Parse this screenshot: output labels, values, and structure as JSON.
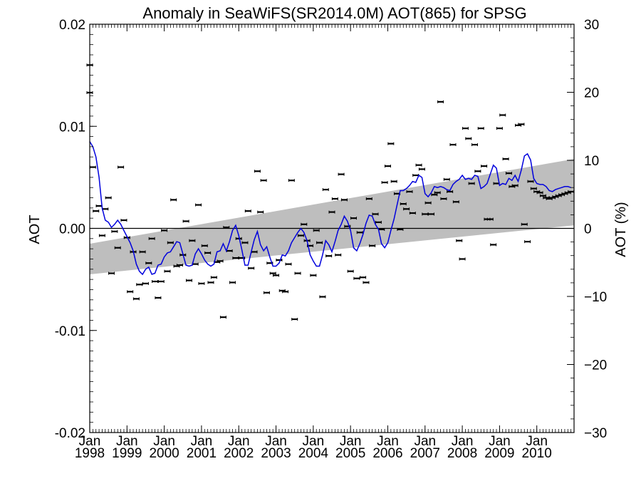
{
  "chart_data": {
    "type": "line",
    "title": "Anomaly in SeaWiFS(SR2014.0M) AOT(865) for SPSG",
    "ylabel": "AOT",
    "y2label": "AOT (%)",
    "ylim": [
      -0.02,
      0.02
    ],
    "y2lim": [
      -30,
      30
    ],
    "xlim": [
      "1998-01",
      "2011-01"
    ],
    "yticks": [
      "0.02",
      "0.01",
      "0.00",
      "-0.01",
      "-0.02"
    ],
    "y2ticks": [
      "30",
      "20",
      "10",
      "0",
      "−10",
      "−20",
      "−30"
    ],
    "xticks": [
      {
        "month": "Jan",
        "year": "1998"
      },
      {
        "month": "Jan",
        "year": "1999"
      },
      {
        "month": "Jan",
        "year": "2000"
      },
      {
        "month": "Jan",
        "year": "2001"
      },
      {
        "month": "Jan",
        "year": "2002"
      },
      {
        "month": "Jan",
        "year": "2003"
      },
      {
        "month": "Jan",
        "year": "2004"
      },
      {
        "month": "Jan",
        "year": "2005"
      },
      {
        "month": "Jan",
        "year": "2006"
      },
      {
        "month": "Jan",
        "year": "2007"
      },
      {
        "month": "Jan",
        "year": "2008"
      },
      {
        "month": "Jan",
        "year": "2009"
      },
      {
        "month": "Jan",
        "year": "2010"
      }
    ],
    "trend_band": {
      "start": {
        "x": "1998-01",
        "upper": -0.0015,
        "lower": -0.0045
      },
      "end": {
        "x": "2011-01",
        "upper": 0.0068,
        "lower": 0.0003
      },
      "color": "#bebebe"
    },
    "series": [
      {
        "style": "errorbar_points",
        "color": "#000000",
        "x": [
          "1998-01",
          "1998-01",
          "1998-02",
          "1998-03",
          "1998-04",
          "1998-05",
          "1998-06",
          "1998-07",
          "1998-08",
          "1998-09",
          "1998-10",
          "1998-11",
          "1998-12",
          "1999-01",
          "1999-02",
          "1999-03",
          "1999-04",
          "1999-05",
          "1999-06",
          "1999-07",
          "1999-08",
          "1999-09",
          "1999-10",
          "1999-11",
          "1999-12",
          "2000-01",
          "2000-02",
          "2000-03",
          "2000-04",
          "2000-05",
          "2000-06",
          "2000-07",
          "2000-08",
          "2000-09",
          "2000-10",
          "2000-11",
          "2000-12",
          "2001-01",
          "2001-02",
          "2001-03",
          "2001-04",
          "2001-05",
          "2001-06",
          "2001-07",
          "2001-08",
          "2001-09",
          "2001-10",
          "2001-11",
          "2001-12",
          "2002-01",
          "2002-02",
          "2002-03",
          "2002-04",
          "2002-05",
          "2002-06",
          "2002-07",
          "2002-08",
          "2002-09",
          "2002-10",
          "2002-11",
          "2002-12",
          "2003-01",
          "2003-02",
          "2003-03",
          "2003-04",
          "2003-05",
          "2003-06",
          "2003-07",
          "2003-08",
          "2003-09",
          "2003-10",
          "2003-11",
          "2003-12",
          "2004-01",
          "2004-02",
          "2004-03",
          "2004-04",
          "2004-05",
          "2004-06",
          "2004-07",
          "2004-08",
          "2004-09",
          "2004-10",
          "2004-11",
          "2004-12",
          "2005-01",
          "2005-02",
          "2005-03",
          "2005-04",
          "2005-05",
          "2005-06",
          "2005-07",
          "2005-08",
          "2005-09",
          "2005-10",
          "2005-11",
          "2005-12",
          "2006-01",
          "2006-02",
          "2006-03",
          "2006-04",
          "2006-05",
          "2006-06",
          "2006-07",
          "2006-08",
          "2006-09",
          "2006-10",
          "2006-11",
          "2006-12",
          "2007-01",
          "2007-02",
          "2007-03",
          "2007-04",
          "2007-05",
          "2007-06",
          "2007-07",
          "2007-08",
          "2007-09",
          "2007-10",
          "2007-11",
          "2007-12",
          "2008-01",
          "2008-02",
          "2008-03",
          "2008-04",
          "2008-05",
          "2008-06",
          "2008-07",
          "2008-08",
          "2008-09",
          "2008-10",
          "2008-11",
          "2008-12",
          "2009-01",
          "2009-02",
          "2009-03",
          "2009-04",
          "2009-05",
          "2009-06",
          "2009-07",
          "2009-08",
          "2009-09",
          "2009-10",
          "2009-11",
          "2009-12",
          "2010-01",
          "2010-02",
          "2010-03",
          "2010-04",
          "2010-05",
          "2010-06",
          "2010-07",
          "2010-08",
          "2010-09",
          "2010-10",
          "2010-11",
          "2010-12"
        ],
        "y": [
          0.0133,
          0.016,
          0.006,
          0.0017,
          0.0022,
          -0.0007,
          0.0019,
          0.003,
          -0.0044,
          -0.0003,
          -0.0019,
          0.006,
          0.0008,
          -0.0009,
          -0.0062,
          -0.0023,
          -0.0069,
          -0.0055,
          -0.0023,
          -0.0054,
          -0.0034,
          -0.001,
          -0.0052,
          -0.0068,
          -0.0052,
          -0.0002,
          -0.0042,
          -0.0014,
          0.0028,
          -0.0037,
          -0.0036,
          -0.0026,
          0.0007,
          -0.0051,
          -0.0012,
          -0.0035,
          0.0023,
          -0.0054,
          -0.0017,
          -0.0024,
          -0.0053,
          -0.0048,
          -0.0033,
          -0.0032,
          -0.0087,
          0.0001,
          -0.0022,
          -0.0053,
          -0.0029,
          -0.001,
          -0.0029,
          -0.0014,
          0.0017,
          -0.0039,
          -0.0023,
          0.0056,
          0.0016,
          0.0047,
          -0.0063,
          -0.0034,
          -0.0044,
          -0.0046,
          -0.0031,
          -0.0061,
          -0.0062,
          -0.0035,
          0.0047,
          -0.0089,
          -0.0044,
          -0.0007,
          0.0004,
          -0.0012,
          -0.0017,
          -0.0046,
          -0.0002,
          -0.0014,
          -0.0067,
          0.0038,
          -0.0027,
          0.0016,
          0.0029,
          -0.0026,
          0.0053,
          0.0028,
          0.0002,
          -0.0042,
          0.001,
          -0.0049,
          -0.0004,
          -0.0048,
          -0.0053,
          0.0029,
          -0.0017,
          0.0014,
          0.0006,
          -0.0001,
          0.0045,
          0.0061,
          0.0083,
          0.0046,
          0.0034,
          -0.0001,
          0.0024,
          0.0019,
          0.0036,
          0.0015,
          0.0052,
          0.0062,
          0.0058,
          0.0014,
          0.0025,
          0.0014,
          0.0033,
          0.0035,
          0.0124,
          0.0029,
          0.0048,
          0.0036,
          0.0082,
          0.0026,
          -0.0012,
          -0.003,
          0.0098,
          0.0088,
          0.0044,
          0.0082,
          0.0056,
          0.0098,
          0.0061,
          0.0009,
          0.0009,
          -0.0016,
          0.0044,
          0.0098,
          0.0111,
          0.0068,
          0.0054,
          0.0041,
          0.0042,
          0.0101,
          0.0102,
          0.0004,
          -0.0013,
          0.0046,
          0.0039,
          0.0036,
          0.0035,
          0.0032,
          0.003,
          0.0029,
          0.003,
          0.0031,
          0.0032,
          0.0033,
          0.0034,
          0.0035,
          0.0036
        ]
      },
      {
        "style": "line",
        "color": "#0000dd",
        "x": [
          "1998-01",
          "1998-02",
          "1998-03",
          "1998-04",
          "1998-05",
          "1998-06",
          "1998-07",
          "1998-08",
          "1998-09",
          "1998-10",
          "1998-11",
          "1998-12",
          "1999-01",
          "1999-02",
          "1999-03",
          "1999-04",
          "1999-05",
          "1999-06",
          "1999-07",
          "1999-08",
          "1999-09",
          "1999-10",
          "1999-11",
          "1999-12",
          "2000-01",
          "2000-02",
          "2000-03",
          "2000-04",
          "2000-05",
          "2000-06",
          "2000-07",
          "2000-08",
          "2000-09",
          "2000-10",
          "2000-11",
          "2000-12",
          "2001-01",
          "2001-02",
          "2001-03",
          "2001-04",
          "2001-05",
          "2001-06",
          "2001-07",
          "2001-08",
          "2001-09",
          "2001-10",
          "2001-11",
          "2001-12",
          "2002-01",
          "2002-02",
          "2002-03",
          "2002-04",
          "2002-05",
          "2002-06",
          "2002-07",
          "2002-08",
          "2002-09",
          "2002-10",
          "2002-11",
          "2002-12",
          "2003-01",
          "2003-02",
          "2003-03",
          "2003-04",
          "2003-05",
          "2003-06",
          "2003-07",
          "2003-08",
          "2003-09",
          "2003-10",
          "2003-11",
          "2003-12",
          "2004-01",
          "2004-02",
          "2004-03",
          "2004-04",
          "2004-05",
          "2004-06",
          "2004-07",
          "2004-08",
          "2004-09",
          "2004-10",
          "2004-11",
          "2004-12",
          "2005-01",
          "2005-02",
          "2005-03",
          "2005-04",
          "2005-05",
          "2005-06",
          "2005-07",
          "2005-08",
          "2005-09",
          "2005-10",
          "2005-11",
          "2005-12",
          "2006-01",
          "2006-02",
          "2006-03",
          "2006-04",
          "2006-05",
          "2006-06",
          "2006-07",
          "2006-08",
          "2006-09",
          "2006-10",
          "2006-11",
          "2006-12",
          "2007-01",
          "2007-02",
          "2007-03",
          "2007-04",
          "2007-05",
          "2007-06",
          "2007-07",
          "2007-08",
          "2007-09",
          "2007-10",
          "2007-11",
          "2007-12",
          "2008-01",
          "2008-02",
          "2008-03",
          "2008-04",
          "2008-05",
          "2008-06",
          "2008-07",
          "2008-08",
          "2008-09",
          "2008-10",
          "2008-11",
          "2008-12",
          "2009-01",
          "2009-02",
          "2009-03",
          "2009-04",
          "2009-05",
          "2009-06",
          "2009-07",
          "2009-08",
          "2009-09",
          "2009-10",
          "2009-11",
          "2009-12",
          "2010-01",
          "2010-02",
          "2010-03",
          "2010-04",
          "2010-05",
          "2010-06",
          "2010-07",
          "2010-08",
          "2010-09",
          "2010-10",
          "2010-11",
          "2010-12"
        ],
        "y": [
          0.0085,
          0.008,
          0.007,
          0.005,
          0.002,
          0.0008,
          0.0006,
          0.0001,
          0.0004,
          0.0008,
          0.0004,
          -0.0002,
          -0.0008,
          -0.0014,
          -0.0022,
          -0.0035,
          -0.0042,
          -0.0045,
          -0.004,
          -0.0038,
          -0.0045,
          -0.0044,
          -0.0036,
          -0.0035,
          -0.0028,
          -0.0024,
          -0.0023,
          -0.0018,
          -0.0013,
          -0.0014,
          -0.0025,
          -0.0036,
          -0.0037,
          -0.0036,
          -0.0025,
          -0.002,
          -0.0025,
          -0.0031,
          -0.0035,
          -0.0037,
          -0.0035,
          -0.0023,
          -0.0022,
          -0.0015,
          -0.0022,
          -0.0013,
          -0.0002,
          0.0003,
          -0.0007,
          -0.0021,
          -0.0036,
          -0.0036,
          -0.0023,
          -0.0011,
          -0.0003,
          -0.0016,
          -0.0022,
          -0.0018,
          -0.0028,
          -0.0037,
          -0.0037,
          -0.0034,
          -0.0026,
          -0.0027,
          -0.0022,
          -0.0014,
          -0.0009,
          -0.0004,
          0.0,
          -0.0004,
          -0.0012,
          -0.0026,
          -0.0032,
          -0.0037,
          -0.0037,
          -0.0026,
          -0.0012,
          -0.0016,
          -0.0023,
          -0.0013,
          -0.0002,
          0.0004,
          0.0012,
          0.0007,
          -0.0002,
          -0.0019,
          -0.0022,
          -0.0015,
          -0.0006,
          0.0005,
          0.0013,
          0.0012,
          0.0004,
          -0.0001,
          -0.0015,
          -0.0019,
          -0.0014,
          -0.0002,
          0.0009,
          0.0023,
          0.0037,
          0.0037,
          0.0039,
          0.0042,
          0.0046,
          0.0045,
          0.0052,
          0.005,
          0.0034,
          0.0031,
          0.0035,
          0.0041,
          0.004,
          0.0041,
          0.004,
          0.0038,
          0.0037,
          0.0043,
          0.0046,
          0.0048,
          0.0052,
          0.0048,
          0.0049,
          0.0048,
          0.0052,
          0.0051,
          0.0039,
          0.0041,
          0.0044,
          0.0053,
          0.0062,
          0.0059,
          0.0042,
          0.0044,
          0.0043,
          0.0049,
          0.0047,
          0.0052,
          0.0046,
          0.0057,
          0.0071,
          0.0073,
          0.0067,
          0.0049,
          0.0044,
          0.0043,
          0.0043,
          0.0041,
          0.0037,
          0.0036,
          0.0038,
          0.0039,
          0.004,
          0.0041,
          0.0041,
          0.004
        ]
      }
    ]
  }
}
